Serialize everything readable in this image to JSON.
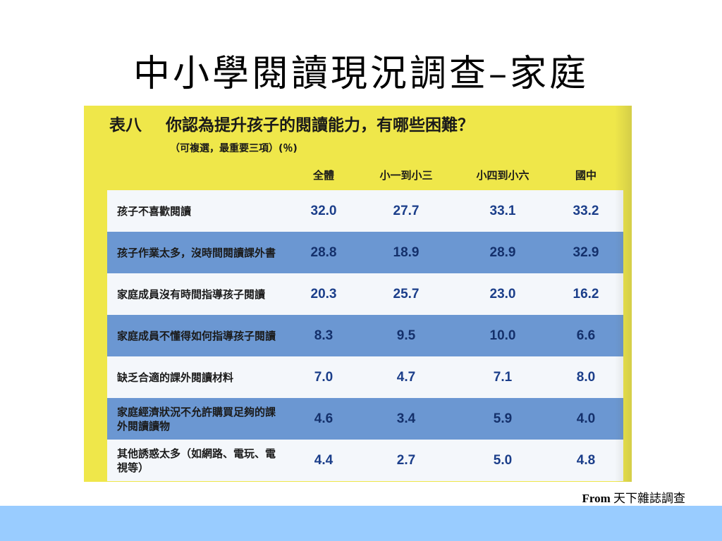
{
  "slide": {
    "title": "中小學閱讀現況調查–家庭",
    "source_prefix": "From",
    "source_name": "天下雜誌調查"
  },
  "table": {
    "number": "表八",
    "question": "你認為提升孩子的閱讀能力，有哪些困難？",
    "subtitle": "（可複選，最重要三項）(％)",
    "columns": [
      "全體",
      "小一到小三",
      "小四到小六",
      "國中"
    ],
    "rows": [
      {
        "label": "孩子不喜歡閱讀",
        "values": [
          "32.0",
          "27.7",
          "33.1",
          "33.2"
        ]
      },
      {
        "label": "孩子作業太多，沒時間閱讀課外書",
        "values": [
          "28.8",
          "18.9",
          "28.9",
          "32.9"
        ]
      },
      {
        "label": "家庭成員沒有時間指導孩子閱讀",
        "values": [
          "20.3",
          "25.7",
          "23.0",
          "16.2"
        ]
      },
      {
        "label": "家庭成員不懂得如何指導孩子閱讀",
        "values": [
          "8.3",
          "9.5",
          "10.0",
          "6.6"
        ]
      },
      {
        "label": "缺乏合適的課外閱讀材料",
        "values": [
          "7.0",
          "4.7",
          "7.1",
          "8.0"
        ]
      },
      {
        "label": "家庭經濟狀況不允許購買足夠的課外閱讀讀物",
        "values": [
          "4.6",
          "3.4",
          "5.9",
          "4.0"
        ]
      },
      {
        "label": "其他誘惑太多（如網路、電玩、電視等）",
        "values": [
          "4.4",
          "2.7",
          "5.0",
          "4.8"
        ]
      }
    ]
  },
  "colors": {
    "photo_bg": "#efe74a",
    "row_light": "#f4f7fb",
    "row_blue": "#6b97d2",
    "footer_band": "#99ccff"
  }
}
